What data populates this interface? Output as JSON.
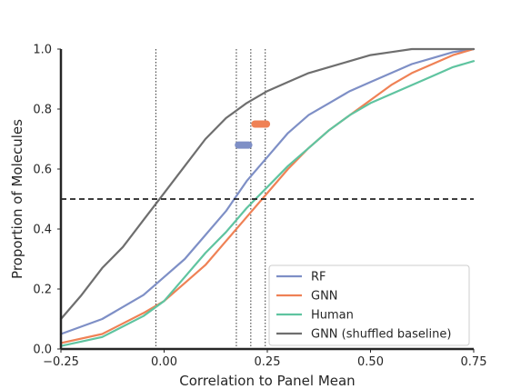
{
  "chart_data": {
    "type": "line",
    "xlabel": "Correlation to Panel Mean",
    "ylabel": "Proportion of Molecules",
    "xlim": [
      -0.25,
      0.75
    ],
    "ylim": [
      0.0,
      1.0
    ],
    "xticks": [
      "−0.25",
      "0.00",
      "0.25",
      "0.50",
      "0.75"
    ],
    "xtick_values": [
      -0.25,
      0.0,
      0.25,
      0.5,
      0.75
    ],
    "yticks": [
      "0.0",
      "0.2",
      "0.4",
      "0.6",
      "0.8",
      "1.0"
    ],
    "ytick_values": [
      0.0,
      0.2,
      0.4,
      0.6,
      0.8,
      1.0
    ],
    "grid": false,
    "legend_position": "lower-right",
    "reference_lines": {
      "horizontal_dashed_y": 0.5,
      "vertical_dotted_x": [
        -0.02,
        0.175,
        0.21,
        0.245
      ]
    },
    "intervals": [
      {
        "series": "RF",
        "x_range": [
          0.18,
          0.205
        ],
        "y": 0.68,
        "color": "#7e8fc6"
      },
      {
        "series": "GNN",
        "x_range": [
          0.22,
          0.248
        ],
        "y": 0.75,
        "color": "#ef8155"
      }
    ],
    "series": [
      {
        "name": "RF",
        "color": "#7e8fc6",
        "x": [
          -0.25,
          -0.15,
          -0.05,
          0.0,
          0.05,
          0.1,
          0.15,
          0.2,
          0.25,
          0.3,
          0.35,
          0.4,
          0.45,
          0.5,
          0.55,
          0.6,
          0.65,
          0.7,
          0.75
        ],
        "y": [
          0.05,
          0.1,
          0.18,
          0.24,
          0.3,
          0.38,
          0.46,
          0.56,
          0.64,
          0.72,
          0.78,
          0.82,
          0.86,
          0.89,
          0.92,
          0.95,
          0.97,
          0.99,
          1.0
        ]
      },
      {
        "name": "GNN",
        "color": "#ef8155",
        "x": [
          -0.25,
          -0.15,
          -0.05,
          0.0,
          0.05,
          0.1,
          0.15,
          0.2,
          0.25,
          0.3,
          0.35,
          0.4,
          0.45,
          0.5,
          0.55,
          0.6,
          0.65,
          0.7,
          0.75
        ],
        "y": [
          0.02,
          0.05,
          0.12,
          0.16,
          0.22,
          0.28,
          0.36,
          0.44,
          0.52,
          0.6,
          0.67,
          0.73,
          0.78,
          0.83,
          0.88,
          0.92,
          0.95,
          0.98,
          1.0
        ]
      },
      {
        "name": "Human",
        "color": "#5fc4a0",
        "x": [
          -0.25,
          -0.15,
          -0.05,
          0.0,
          0.05,
          0.1,
          0.15,
          0.2,
          0.25,
          0.3,
          0.35,
          0.4,
          0.45,
          0.5,
          0.55,
          0.6,
          0.65,
          0.7,
          0.75
        ],
        "y": [
          0.01,
          0.04,
          0.11,
          0.16,
          0.24,
          0.32,
          0.39,
          0.47,
          0.54,
          0.61,
          0.67,
          0.73,
          0.78,
          0.82,
          0.85,
          0.88,
          0.91,
          0.94,
          0.96
        ]
      },
      {
        "name": "GNN (shuffled baseline)",
        "color": "#6e6e6e",
        "x": [
          -0.25,
          -0.2,
          -0.15,
          -0.1,
          -0.05,
          0.0,
          0.05,
          0.1,
          0.15,
          0.2,
          0.25,
          0.3,
          0.35,
          0.4,
          0.45,
          0.5,
          0.55,
          0.6,
          0.65,
          0.7,
          0.75
        ],
        "y": [
          0.1,
          0.18,
          0.27,
          0.34,
          0.43,
          0.52,
          0.61,
          0.7,
          0.77,
          0.82,
          0.86,
          0.89,
          0.92,
          0.94,
          0.96,
          0.98,
          0.99,
          1.0,
          1.0,
          1.0,
          1.0
        ]
      }
    ]
  }
}
